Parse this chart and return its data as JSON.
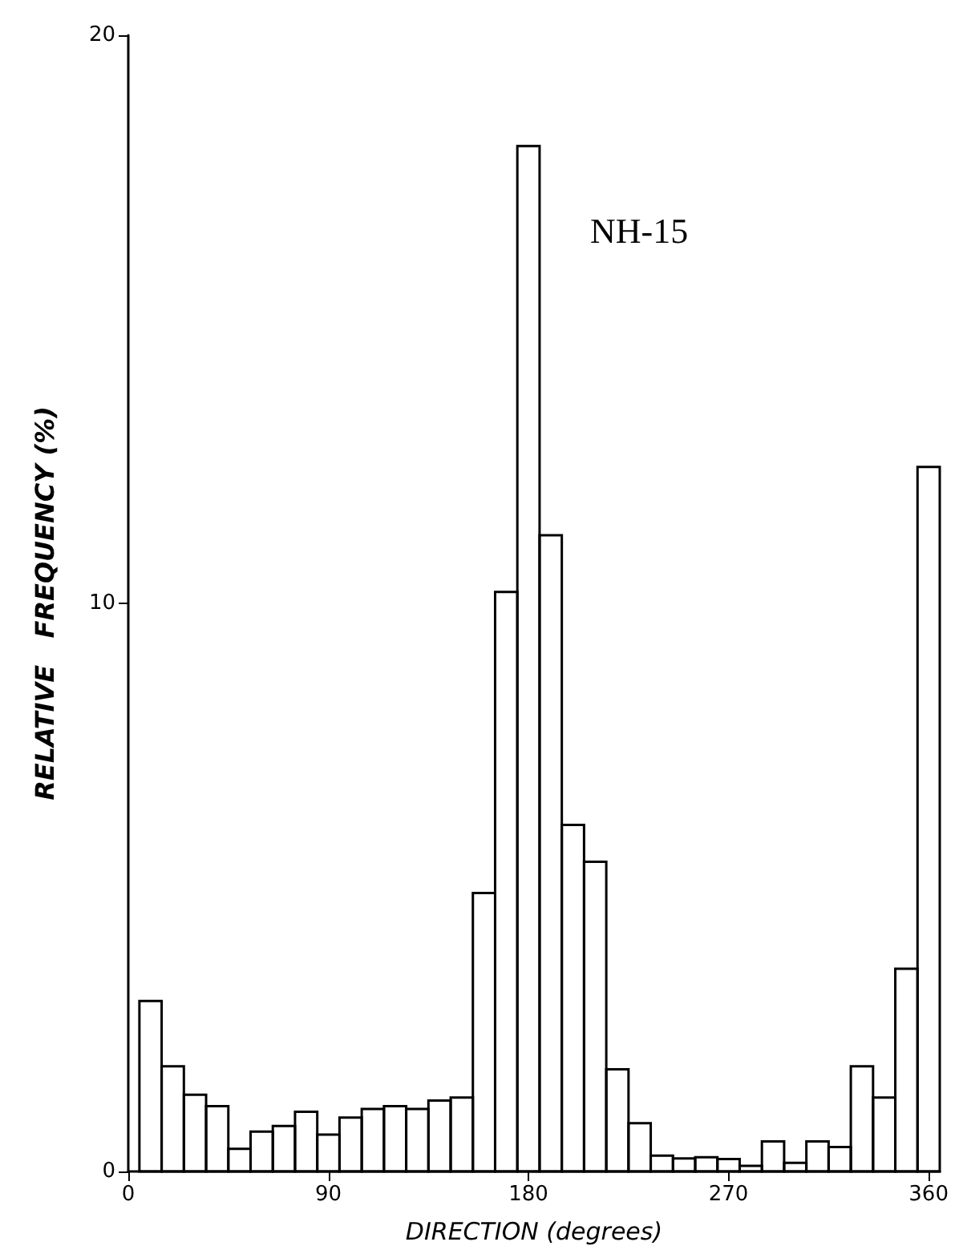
{
  "chart_data": {
    "type": "histogram",
    "xlabel": "DIRECTION (degrees)",
    "ylabel": "RELATIVE   FREQUENCY (%)",
    "annotations": [
      "NH-15"
    ],
    "bins": [
      5,
      15,
      25,
      35,
      45,
      55,
      65,
      75,
      85,
      95,
      105,
      115,
      125,
      135,
      145,
      155,
      165,
      175,
      185,
      195,
      205,
      215,
      225,
      235,
      245,
      255,
      265,
      275,
      285,
      295,
      305,
      315,
      325,
      335,
      345,
      355,
      365
    ],
    "values": [
      3.0,
      1.85,
      1.35,
      1.15,
      0.4,
      0.7,
      0.8,
      1.05,
      0.65,
      0.95,
      1.1,
      1.15,
      1.1,
      1.25,
      1.3,
      4.9,
      10.2,
      18.05,
      11.2,
      6.1,
      5.45,
      1.8,
      0.85,
      0.28,
      0.23,
      0.25,
      0.22,
      0.1,
      0.53,
      0.15,
      0.53,
      0.43,
      1.85,
      1.3,
      3.57,
      12.4
    ],
    "color": "#000000",
    "xlim": [
      0,
      365
    ],
    "xticks": [
      0,
      90,
      180,
      270,
      360
    ],
    "ylim": [
      0,
      20
    ],
    "yticks": [
      0,
      10,
      20
    ],
    "grid": false
  }
}
